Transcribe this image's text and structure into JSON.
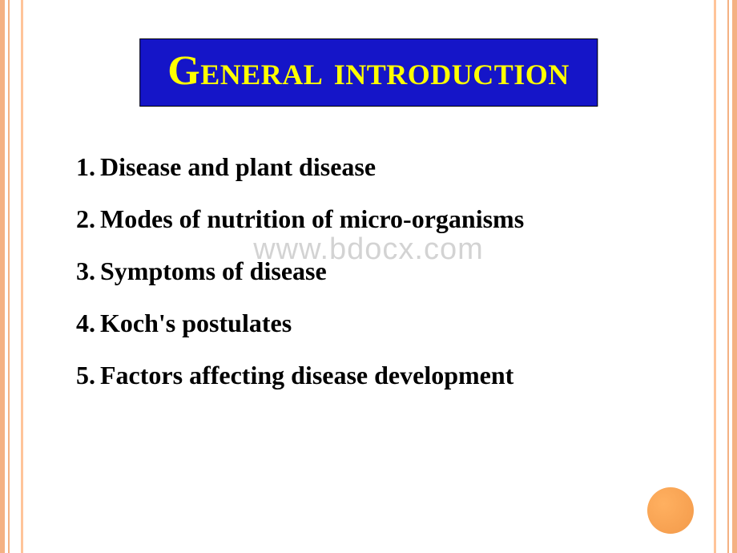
{
  "slide": {
    "title": "General introduction",
    "title_box_bg": "#1515c8",
    "title_color": "#ffff00",
    "title_fontsize": 52,
    "items": [
      {
        "n": "1.",
        "text": "Disease and plant disease"
      },
      {
        "n": "2.",
        "text": "Modes of nutrition of micro-organisms"
      },
      {
        "n": "3.",
        "text": "Symptoms of disease"
      },
      {
        "n": "4.",
        "text": "Koch's postulates"
      },
      {
        "n": "5.",
        "text": "Factors affecting disease development"
      }
    ],
    "item_fontsize": 32,
    "item_color": "#000000",
    "watermark": "www.bdocx.com",
    "watermark_color": "rgba(128,128,128,0.35)",
    "border_color_outer": "#f4b183",
    "border_color_inner": "#ffc499",
    "dot_color": "#f39a4a",
    "background": "#ffffff"
  }
}
